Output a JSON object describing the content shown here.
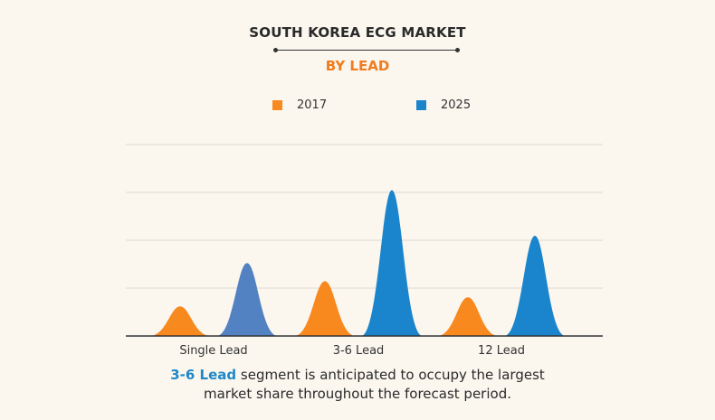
{
  "header": {
    "title": "SOUTH KOREA ECG MARKET",
    "subtitle": "BY LEAD"
  },
  "colors": {
    "series_2017": "#f7891e",
    "series_2025_primary": "#1a85cc",
    "series_2025_single_lead": "#5282c2",
    "subtitle": "#f07c1e",
    "highlight": "#1e88c8"
  },
  "chart_data": {
    "type": "area",
    "categories": [
      "Single Lead",
      "3-6 Lead",
      "12 Lead"
    ],
    "series": [
      {
        "name": "2017",
        "values": [
          0.65,
          1.2,
          0.85
        ]
      },
      {
        "name": "2025",
        "values": [
          1.6,
          3.2,
          2.2
        ]
      }
    ],
    "ylim": [
      0,
      4.2
    ],
    "grid": true,
    "legend_position": "top"
  },
  "footnote": {
    "highlight": "3-6 Lead",
    "line1_rest": " segment is anticipated to occupy the largest",
    "line2": "market share throughout the forecast period."
  }
}
